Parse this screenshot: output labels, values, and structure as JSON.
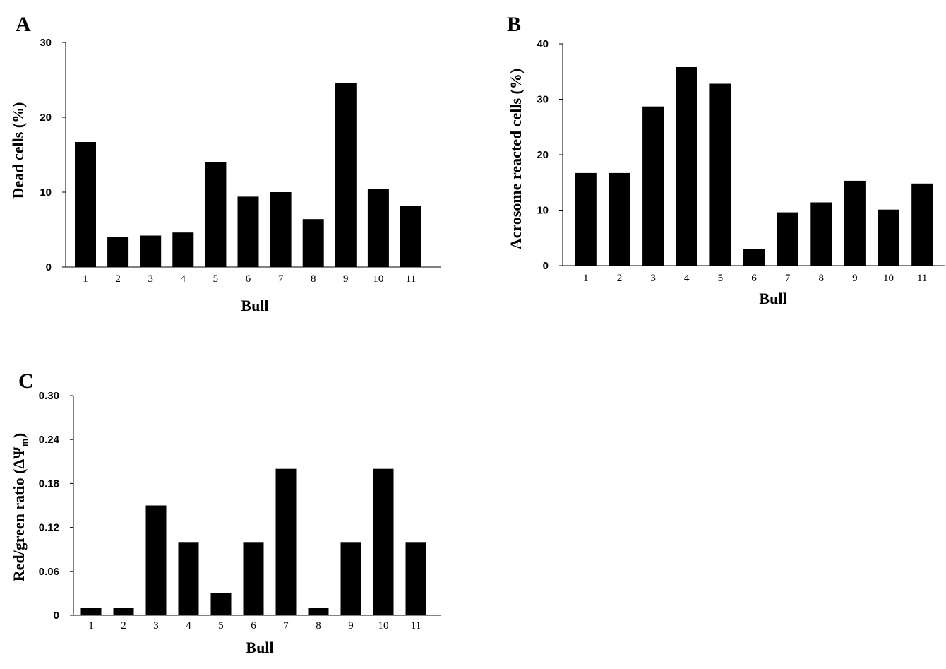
{
  "chart_data": [
    {
      "panel": "A",
      "type": "bar",
      "categories": [
        "1",
        "2",
        "3",
        "4",
        "5",
        "6",
        "7",
        "8",
        "9",
        "10",
        "11"
      ],
      "values": [
        16.7,
        4.0,
        4.2,
        4.6,
        14.0,
        9.4,
        10.0,
        6.4,
        24.6,
        10.4,
        8.2
      ],
      "xlabel": "Bull",
      "ylabel": "Dead cells (%)",
      "ylim": [
        0,
        30
      ],
      "yticks": [
        0,
        10,
        20,
        30
      ],
      "ytick_labels": [
        "0",
        "10",
        "20",
        "30"
      ],
      "grid": false
    },
    {
      "panel": "B",
      "type": "bar",
      "categories": [
        "1",
        "2",
        "3",
        "4",
        "5",
        "6",
        "7",
        "8",
        "9",
        "10",
        "11"
      ],
      "values": [
        16.7,
        16.7,
        28.7,
        35.8,
        32.8,
        3.0,
        9.6,
        11.4,
        15.3,
        10.1,
        14.8
      ],
      "xlabel": "Bull",
      "ylabel": "Acrosome reacted cells (%)",
      "ylim": [
        0,
        40
      ],
      "yticks": [
        0,
        10,
        20,
        30,
        40
      ],
      "ytick_labels": [
        "0",
        "10",
        "20",
        "30",
        "40"
      ],
      "grid": false
    },
    {
      "panel": "C",
      "type": "bar",
      "categories": [
        "1",
        "2",
        "3",
        "4",
        "5",
        "6",
        "7",
        "8",
        "9",
        "10",
        "11"
      ],
      "values": [
        0.01,
        0.01,
        0.15,
        0.1,
        0.03,
        0.1,
        0.2,
        0.01,
        0.1,
        0.2,
        0.1
      ],
      "xlabel": "Bull",
      "ylabel": "Red/green ratio (ΔΨ",
      "ylabel_subscript": "m",
      "ylabel_suffix": ")",
      "ylim": [
        0,
        0.3
      ],
      "yticks": [
        0,
        0.06,
        0.12,
        0.18,
        0.24,
        0.3
      ],
      "ytick_labels": [
        "0",
        "0.06",
        "0.12",
        "0.18",
        "0.24",
        "0.30"
      ],
      "grid": false
    }
  ]
}
